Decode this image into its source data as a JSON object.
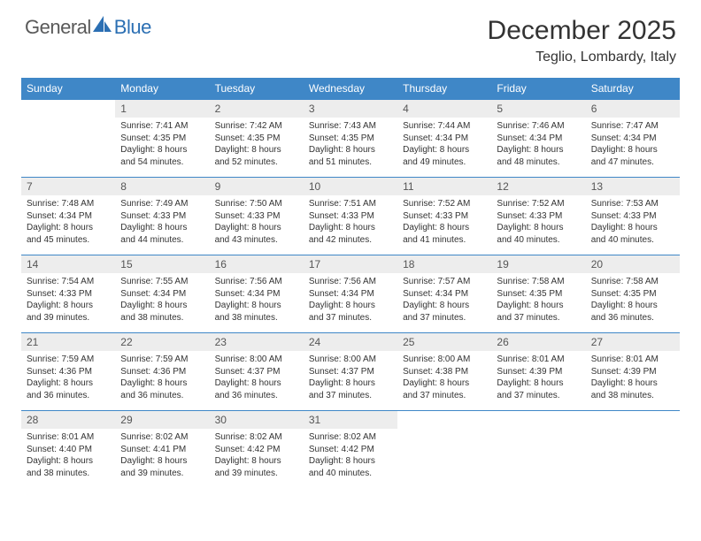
{
  "logo": {
    "part1": "General",
    "part2": "Blue",
    "accent_color": "#2b6fb3",
    "gray": "#595959"
  },
  "title": "December 2025",
  "location": "Teglio, Lombardy, Italy",
  "colors": {
    "header_bg": "#3f87c7",
    "header_fg": "#ffffff",
    "daynum_bg": "#ededed",
    "border": "#3f87c7",
    "text": "#333333",
    "background": "#ffffff"
  },
  "weekdays": [
    "Sunday",
    "Monday",
    "Tuesday",
    "Wednesday",
    "Thursday",
    "Friday",
    "Saturday"
  ],
  "start_offset": 1,
  "days": [
    {
      "n": 1,
      "sunrise": "7:41 AM",
      "sunset": "4:35 PM",
      "day_h": 8,
      "day_m": 54
    },
    {
      "n": 2,
      "sunrise": "7:42 AM",
      "sunset": "4:35 PM",
      "day_h": 8,
      "day_m": 52
    },
    {
      "n": 3,
      "sunrise": "7:43 AM",
      "sunset": "4:35 PM",
      "day_h": 8,
      "day_m": 51
    },
    {
      "n": 4,
      "sunrise": "7:44 AM",
      "sunset": "4:34 PM",
      "day_h": 8,
      "day_m": 49
    },
    {
      "n": 5,
      "sunrise": "7:46 AM",
      "sunset": "4:34 PM",
      "day_h": 8,
      "day_m": 48
    },
    {
      "n": 6,
      "sunrise": "7:47 AM",
      "sunset": "4:34 PM",
      "day_h": 8,
      "day_m": 47
    },
    {
      "n": 7,
      "sunrise": "7:48 AM",
      "sunset": "4:34 PM",
      "day_h": 8,
      "day_m": 45
    },
    {
      "n": 8,
      "sunrise": "7:49 AM",
      "sunset": "4:33 PM",
      "day_h": 8,
      "day_m": 44
    },
    {
      "n": 9,
      "sunrise": "7:50 AM",
      "sunset": "4:33 PM",
      "day_h": 8,
      "day_m": 43
    },
    {
      "n": 10,
      "sunrise": "7:51 AM",
      "sunset": "4:33 PM",
      "day_h": 8,
      "day_m": 42
    },
    {
      "n": 11,
      "sunrise": "7:52 AM",
      "sunset": "4:33 PM",
      "day_h": 8,
      "day_m": 41
    },
    {
      "n": 12,
      "sunrise": "7:52 AM",
      "sunset": "4:33 PM",
      "day_h": 8,
      "day_m": 40
    },
    {
      "n": 13,
      "sunrise": "7:53 AM",
      "sunset": "4:33 PM",
      "day_h": 8,
      "day_m": 40
    },
    {
      "n": 14,
      "sunrise": "7:54 AM",
      "sunset": "4:33 PM",
      "day_h": 8,
      "day_m": 39
    },
    {
      "n": 15,
      "sunrise": "7:55 AM",
      "sunset": "4:34 PM",
      "day_h": 8,
      "day_m": 38
    },
    {
      "n": 16,
      "sunrise": "7:56 AM",
      "sunset": "4:34 PM",
      "day_h": 8,
      "day_m": 38
    },
    {
      "n": 17,
      "sunrise": "7:56 AM",
      "sunset": "4:34 PM",
      "day_h": 8,
      "day_m": 37
    },
    {
      "n": 18,
      "sunrise": "7:57 AM",
      "sunset": "4:34 PM",
      "day_h": 8,
      "day_m": 37
    },
    {
      "n": 19,
      "sunrise": "7:58 AM",
      "sunset": "4:35 PM",
      "day_h": 8,
      "day_m": 37
    },
    {
      "n": 20,
      "sunrise": "7:58 AM",
      "sunset": "4:35 PM",
      "day_h": 8,
      "day_m": 36
    },
    {
      "n": 21,
      "sunrise": "7:59 AM",
      "sunset": "4:36 PM",
      "day_h": 8,
      "day_m": 36
    },
    {
      "n": 22,
      "sunrise": "7:59 AM",
      "sunset": "4:36 PM",
      "day_h": 8,
      "day_m": 36
    },
    {
      "n": 23,
      "sunrise": "8:00 AM",
      "sunset": "4:37 PM",
      "day_h": 8,
      "day_m": 36
    },
    {
      "n": 24,
      "sunrise": "8:00 AM",
      "sunset": "4:37 PM",
      "day_h": 8,
      "day_m": 37
    },
    {
      "n": 25,
      "sunrise": "8:00 AM",
      "sunset": "4:38 PM",
      "day_h": 8,
      "day_m": 37
    },
    {
      "n": 26,
      "sunrise": "8:01 AM",
      "sunset": "4:39 PM",
      "day_h": 8,
      "day_m": 37
    },
    {
      "n": 27,
      "sunrise": "8:01 AM",
      "sunset": "4:39 PM",
      "day_h": 8,
      "day_m": 38
    },
    {
      "n": 28,
      "sunrise": "8:01 AM",
      "sunset": "4:40 PM",
      "day_h": 8,
      "day_m": 38
    },
    {
      "n": 29,
      "sunrise": "8:02 AM",
      "sunset": "4:41 PM",
      "day_h": 8,
      "day_m": 39
    },
    {
      "n": 30,
      "sunrise": "8:02 AM",
      "sunset": "4:42 PM",
      "day_h": 8,
      "day_m": 39
    },
    {
      "n": 31,
      "sunrise": "8:02 AM",
      "sunset": "4:42 PM",
      "day_h": 8,
      "day_m": 40
    }
  ],
  "labels": {
    "sunrise": "Sunrise:",
    "sunset": "Sunset:",
    "daylight_prefix": "Daylight:",
    "hours": "hours",
    "and": "and",
    "minutes": "minutes."
  }
}
